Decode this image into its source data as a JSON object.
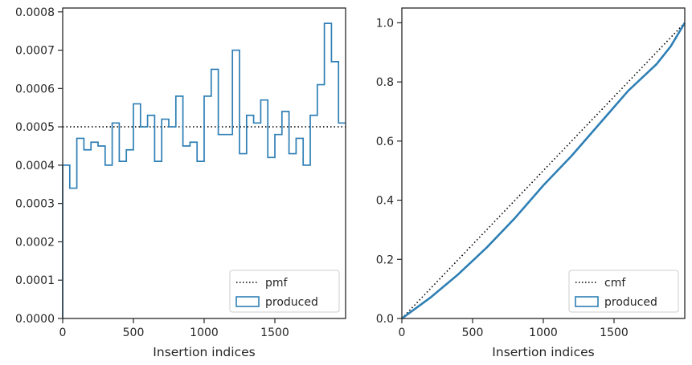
{
  "chart_data": [
    {
      "type": "step",
      "xlabel": "Insertion indices",
      "ylabel": "",
      "xlim": [
        0,
        2000
      ],
      "ylim": [
        0,
        0.00081
      ],
      "xticks": [
        0,
        500,
        1000,
        1500
      ],
      "xtick_labels": [
        "0",
        "500",
        "1000",
        "1500"
      ],
      "yticks": [
        0,
        0.0001,
        0.0002,
        0.0003,
        0.0004,
        0.0005,
        0.0006,
        0.0007,
        0.0008
      ],
      "ytick_labels": [
        "0.0000",
        "0.0001",
        "0.0002",
        "0.0003",
        "0.0004",
        "0.0005",
        "0.0006",
        "0.0007",
        "0.0008"
      ],
      "legend_position": "lower-right",
      "bin_width": 50,
      "series": [
        {
          "name": "pmf",
          "style": "dotted",
          "color": "#000000",
          "value": 0.0005
        },
        {
          "name": "produced",
          "style": "step",
          "color": "#2e7fb5",
          "values": [
            0.0004,
            0.00034,
            0.00047,
            0.00044,
            0.00046,
            0.00045,
            0.0004,
            0.00051,
            0.00041,
            0.00044,
            0.00056,
            0.0005,
            0.00053,
            0.00041,
            0.00052,
            0.0005,
            0.00058,
            0.00045,
            0.00046,
            0.00041,
            0.00058,
            0.00065,
            0.00048,
            0.00048,
            0.0007,
            0.00043,
            0.00053,
            0.00051,
            0.00057,
            0.00042,
            0.00048,
            0.00054,
            0.00043,
            0.00047,
            0.0004,
            0.00053,
            0.00061,
            0.00077,
            0.00067,
            0.00051
          ]
        }
      ]
    },
    {
      "type": "line",
      "xlabel": "Insertion indices",
      "ylabel": "",
      "xlim": [
        0,
        2000
      ],
      "ylim": [
        0,
        1.05
      ],
      "xticks": [
        0,
        500,
        1000,
        1500
      ],
      "xtick_labels": [
        "0",
        "500",
        "1000",
        "1500"
      ],
      "yticks": [
        0,
        0.2,
        0.4,
        0.6,
        0.8,
        1.0
      ],
      "ytick_labels": [
        "0.0",
        "0.2",
        "0.4",
        "0.6",
        "0.8",
        "1.0"
      ],
      "legend_position": "lower-right",
      "series": [
        {
          "name": "cmf",
          "style": "dotted",
          "color": "#000000",
          "x": [
            0,
            2000
          ],
          "y": [
            0,
            1.0
          ]
        },
        {
          "name": "produced",
          "style": "solid",
          "color": "#2e7fb5",
          "x": [
            0,
            200,
            400,
            600,
            800,
            1000,
            1200,
            1400,
            1600,
            1800,
            1900,
            2000
          ],
          "y": [
            0,
            0.07,
            0.15,
            0.24,
            0.34,
            0.45,
            0.55,
            0.66,
            0.77,
            0.86,
            0.92,
            1.0
          ]
        }
      ]
    }
  ]
}
